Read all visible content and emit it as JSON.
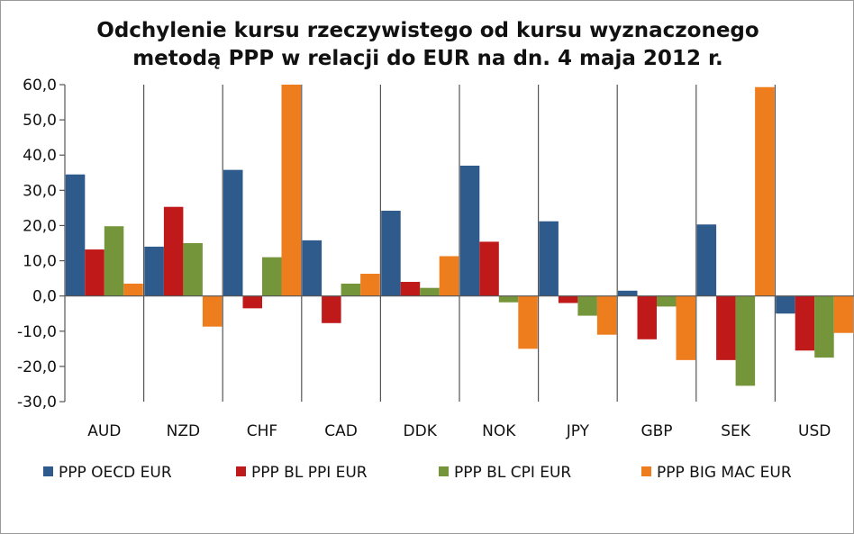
{
  "chart_data": {
    "type": "bar",
    "title_line1": "Odchylenie kursu rzeczywistego od kursu wyznaczonego",
    "title_line2": "metodą PPP w relacji do EUR na dn. 4 maja 2012 r.",
    "categories": [
      "AUD",
      "NZD",
      "CHF",
      "CAD",
      "DDK",
      "NOK",
      "JPY",
      "GBP",
      "SEK",
      "USD"
    ],
    "series": [
      {
        "name": "PPP OECD EUR",
        "color": "#2e5a8c",
        "values": [
          34.5,
          14.0,
          35.8,
          15.8,
          24.2,
          37.0,
          21.2,
          1.5,
          20.3,
          -5.0
        ]
      },
      {
        "name": "PPP BL PPI EUR",
        "color": "#c0191a",
        "values": [
          13.2,
          25.3,
          -3.5,
          -7.7,
          4.0,
          15.4,
          -2.0,
          -12.3,
          -18.2,
          -15.5
        ]
      },
      {
        "name": "PPP BL CPI EUR",
        "color": "#75953a",
        "values": [
          19.8,
          15.0,
          11.0,
          3.5,
          2.3,
          -1.8,
          -5.6,
          -3.0,
          -25.5,
          -17.5
        ]
      },
      {
        "name": "PPP BIG MAC EUR",
        "color": "#ee7d1e",
        "values": [
          3.5,
          -8.7,
          60.0,
          6.3,
          11.3,
          -15.0,
          -11.0,
          -18.2,
          59.3,
          -10.5
        ]
      }
    ],
    "ylim": [
      -30,
      60
    ],
    "yticks": [
      "60,0",
      "50,0",
      "40,0",
      "30,0",
      "20,0",
      "10,0",
      "0,0",
      "-10,0",
      "-20,0",
      "-30,0"
    ],
    "ytick_values": [
      60,
      50,
      40,
      30,
      20,
      10,
      0,
      -10,
      -20,
      -30
    ],
    "grid": "vertical separators between categories",
    "legend_position": "bottom"
  }
}
